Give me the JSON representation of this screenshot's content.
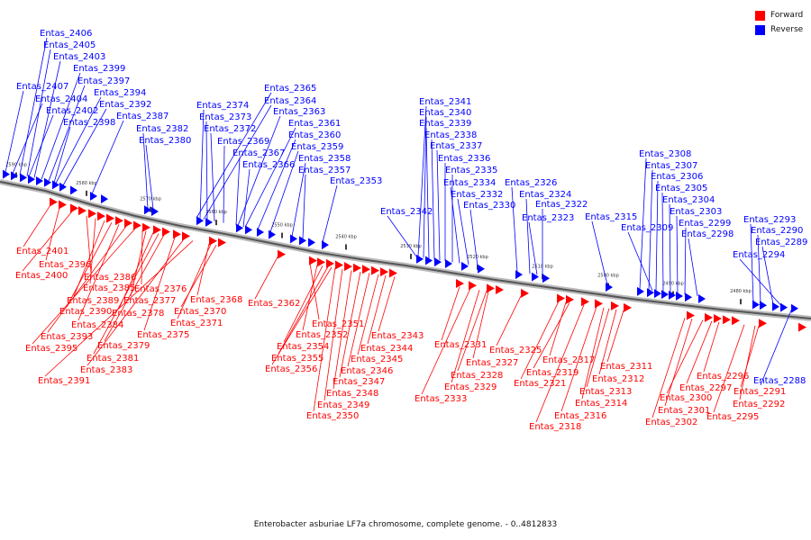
{
  "legend": {
    "forward": "Forward",
    "reverse": "Reverse"
  },
  "colors": {
    "forward": "#ff0000",
    "reverse": "#0000ff",
    "backbone": "#888888"
  },
  "caption": "Enterobacter asburiae LF7a chromosome, complete genome. - 0..4812833",
  "ticks": [
    "2590 kbp",
    "2580 kbp",
    "2570 kbp",
    "2560 kbp",
    "2550 kbp",
    "2540 kbp",
    "2530 kbp",
    "2520 kbp",
    "2510 kbp",
    "2500 kbp",
    "2490 kbp",
    "2480 kbp"
  ],
  "reverse_labels": [
    "Entas_2406",
    "Entas_2405",
    "Entas_2403",
    "Entas_2399",
    "Entas_2397",
    "Entas_2407",
    "Entas_2394",
    "Entas_2404",
    "Entas_2392",
    "Entas_2402",
    "Entas_2387",
    "Entas_2398",
    "Entas_2382",
    "Entas_2380",
    "Entas_2365",
    "Entas_2364",
    "Entas_2374",
    "Entas_2363",
    "Entas_2373",
    "Entas_2361",
    "Entas_2372",
    "Entas_2360",
    "Entas_2369",
    "Entas_2359",
    "Entas_2367",
    "Entas_2358",
    "Entas_2366",
    "Entas_2357",
    "Entas_2353",
    "Entas_2341",
    "Entas_2340",
    "Entas_2339",
    "Entas_2338",
    "Entas_2337",
    "Entas_2336",
    "Entas_2335",
    "Entas_2334",
    "Entas_2332",
    "Entas_2330",
    "Entas_2342",
    "Entas_2326",
    "Entas_2324",
    "Entas_2322",
    "Entas_2323",
    "Entas_2315",
    "Entas_2308",
    "Entas_2307",
    "Entas_2306",
    "Entas_2305",
    "Entas_2304",
    "Entas_2303",
    "Entas_2309",
    "Entas_2299",
    "Entas_2298",
    "Entas_2293",
    "Entas_2290",
    "Entas_2289",
    "Entas_2294",
    "Entas_2288"
  ],
  "forward_labels": [
    "Entas_2401",
    "Entas_2396",
    "Entas_2400",
    "Entas_2386",
    "Entas_2385",
    "Entas_2376",
    "Entas_2389",
    "Entas_2377",
    "Entas_2390",
    "Entas_2378",
    "Entas_2384",
    "Entas_2368",
    "Entas_2370",
    "Entas_2362",
    "Entas_2371",
    "Entas_2393",
    "Entas_2375",
    "Entas_2395",
    "Entas_2379",
    "Entas_2381",
    "Entas_2383",
    "Entas_2391",
    "Entas_2351",
    "Entas_2352",
    "Entas_2354",
    "Entas_2355",
    "Entas_2356",
    "Entas_2343",
    "Entas_2344",
    "Entas_2345",
    "Entas_2346",
    "Entas_2347",
    "Entas_2348",
    "Entas_2349",
    "Entas_2350",
    "Entas_2331",
    "Entas_2325",
    "Entas_2327",
    "Entas_2328",
    "Entas_2329",
    "Entas_2333",
    "Entas_2317",
    "Entas_2319",
    "Entas_2321",
    "Entas_2311",
    "Entas_2312",
    "Entas_2313",
    "Entas_2314",
    "Entas_2316",
    "Entas_2318",
    "Entas_2296",
    "Entas_2297",
    "Entas_2300",
    "Entas_2301",
    "Entas_2302",
    "Entas_2291",
    "Entas_2292",
    "Entas_2295"
  ]
}
